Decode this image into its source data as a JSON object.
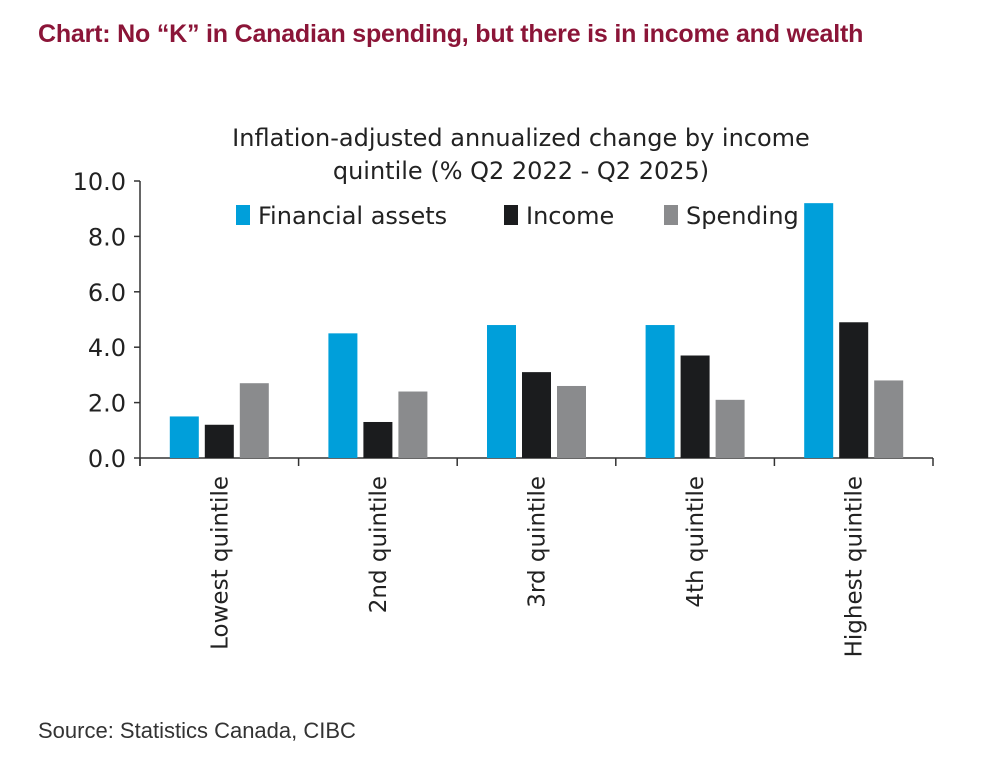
{
  "headline": "Chart: No “K” in Canadian spending, but there is in income and wealth",
  "source": "Source: Statistics Canada, CIBC",
  "chart_data": {
    "type": "bar",
    "title_lines": [
      "Inflation-adjusted annualized change by income",
      "quintile (% Q2 2022 - Q2 2025)"
    ],
    "categories": [
      "Lowest quintile",
      "2nd quintile",
      "3rd quintile",
      "4th quintile",
      "Highest quintile"
    ],
    "series": [
      {
        "name": "Financial assets",
        "color": "#009fda",
        "values": [
          1.5,
          4.5,
          4.8,
          4.8,
          9.2
        ]
      },
      {
        "name": "Income",
        "color": "#1b1c1e",
        "values": [
          1.2,
          1.3,
          3.1,
          3.7,
          4.9
        ]
      },
      {
        "name": "Spending",
        "color": "#8a8b8d",
        "values": [
          2.7,
          2.4,
          2.6,
          2.1,
          2.8
        ]
      }
    ],
    "ylim": [
      0,
      10
    ],
    "yticks": [
      "0.0",
      "2.0",
      "4.0",
      "6.0",
      "8.0",
      "10.0"
    ],
    "legend": "top-center",
    "xlabel": "",
    "ylabel": ""
  }
}
